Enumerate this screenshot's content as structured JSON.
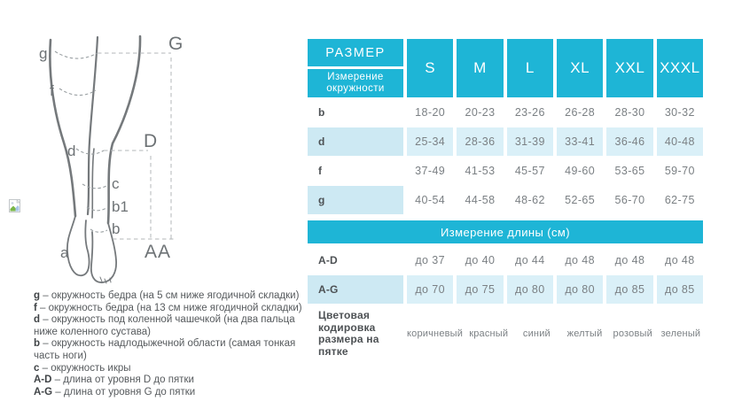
{
  "colors": {
    "teal": "#1eb5d6",
    "light_blue_label": "#cde9f3",
    "light_blue_data": "#daf0f8",
    "value_text": "#7b8084",
    "label_text": "#4d5154"
  },
  "diagram": {
    "labels": {
      "g": "g",
      "f": "f",
      "d": "d",
      "c": "c",
      "b1": "b1",
      "b": "b",
      "a": "a",
      "G": "G",
      "D": "D",
      "AA": "AA"
    }
  },
  "legend": {
    "separator": "–",
    "items": [
      {
        "key": "g",
        "text": "окружность бедра (на 5 см ниже ягодичной складки)"
      },
      {
        "key": "f",
        "text": "окружность бедра (на 13 см ниже ягодичной складки)"
      },
      {
        "key": "d",
        "text": "окружность под коленной чашечкой (на два пальца ниже коленного сустава)"
      },
      {
        "key": "b",
        "text": "окружность надлодыжечной области (самая тонкая часть ноги)"
      },
      {
        "key": "c",
        "text": "окружность икры"
      },
      {
        "key": "A-D",
        "text": "длина от уровня D до пятки"
      },
      {
        "key": "A-G",
        "text": "длина от уровня G до пятки"
      }
    ]
  },
  "table": {
    "header": {
      "title": "РАЗМЕР",
      "subtitle": "Измерение окружности",
      "sizes": [
        "S",
        "M",
        "L",
        "XL",
        "XXL",
        "XXXL"
      ]
    },
    "circumference_rows": [
      {
        "label": "b",
        "label_shaded": false,
        "data_shaded": false,
        "values": [
          "18-20",
          "20-23",
          "23-26",
          "26-28",
          "28-30",
          "30-32"
        ]
      },
      {
        "label": "d",
        "label_shaded": true,
        "data_shaded": true,
        "values": [
          "25-34",
          "28-36",
          "31-39",
          "33-41",
          "36-46",
          "40-48"
        ]
      },
      {
        "label": "f",
        "label_shaded": false,
        "data_shaded": false,
        "values": [
          "37-49",
          "41-53",
          "45-57",
          "49-60",
          "53-65",
          "59-70"
        ]
      },
      {
        "label": "g",
        "label_shaded": true,
        "data_shaded": false,
        "values": [
          "40-54",
          "44-58",
          "48-62",
          "52-65",
          "56-70",
          "62-75"
        ]
      }
    ],
    "length_section_title": "Измерение длины (см)",
    "length_rows": [
      {
        "label": "A-D",
        "label_shaded": false,
        "data_shaded": false,
        "values": [
          "до 37",
          "до 40",
          "до 44",
          "до 48",
          "до 48",
          "до 48"
        ]
      },
      {
        "label": "A-G",
        "label_shaded": true,
        "data_shaded": true,
        "values": [
          "до 70",
          "до 75",
          "до 80",
          "до 80",
          "до 85",
          "до 85"
        ]
      }
    ],
    "color_row": {
      "label": "Цветовая кодировка размера на пятке",
      "values": [
        "коричневый",
        "красный",
        "синий",
        "желтый",
        "розовый",
        "зеленый"
      ]
    }
  }
}
